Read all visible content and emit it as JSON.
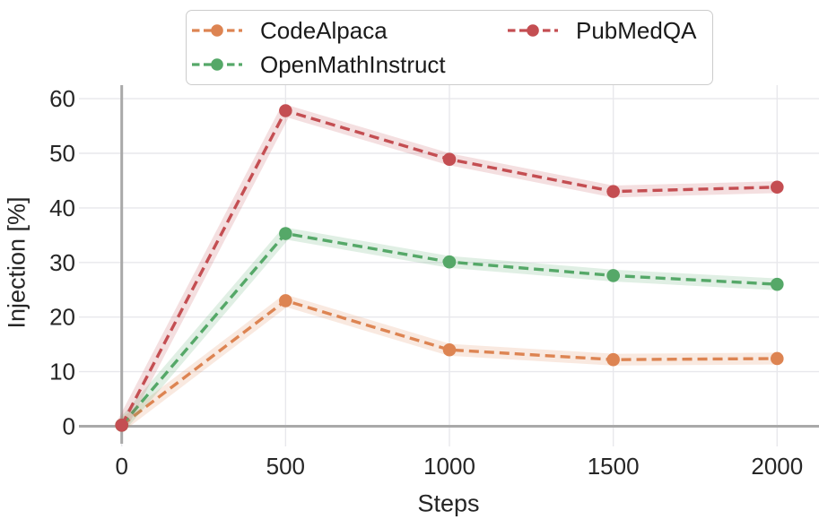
{
  "figure": {
    "background": "#ffffff",
    "text_color": "#262626",
    "gridline_color": "#e8e8ec",
    "zero_axis_color": "#a9a9a9",
    "legend_border_color": "#cccccc"
  },
  "chart_data": {
    "type": "line",
    "title": "",
    "xlabel": "Steps",
    "ylabel": "Injection [%]",
    "x": [
      0,
      500,
      1000,
      1500,
      2000
    ],
    "x_ticks": [
      0,
      500,
      1000,
      1500,
      2000
    ],
    "y_ticks": [
      0,
      10,
      20,
      30,
      40,
      50,
      60
    ],
    "xlim": [
      -130,
      2130
    ],
    "ylim": [
      -3.7,
      62.5
    ],
    "grid": true,
    "line_style": "dashed",
    "marker": "circle",
    "confidence_band": true,
    "band_halfwidth_units": 1.0,
    "legend_position": "upper center, 2 columns",
    "series": [
      {
        "name": "CodeAlpaca",
        "color": "#dd8452",
        "values": [
          0.2,
          23.0,
          14.0,
          12.2,
          12.4
        ]
      },
      {
        "name": "OpenMathInstruct",
        "color": "#55a868",
        "values": [
          0.2,
          35.3,
          30.1,
          27.6,
          26.0
        ]
      },
      {
        "name": "PubMedQA",
        "color": "#c44e52",
        "values": [
          0.2,
          57.8,
          48.9,
          43.0,
          43.8
        ]
      }
    ]
  }
}
